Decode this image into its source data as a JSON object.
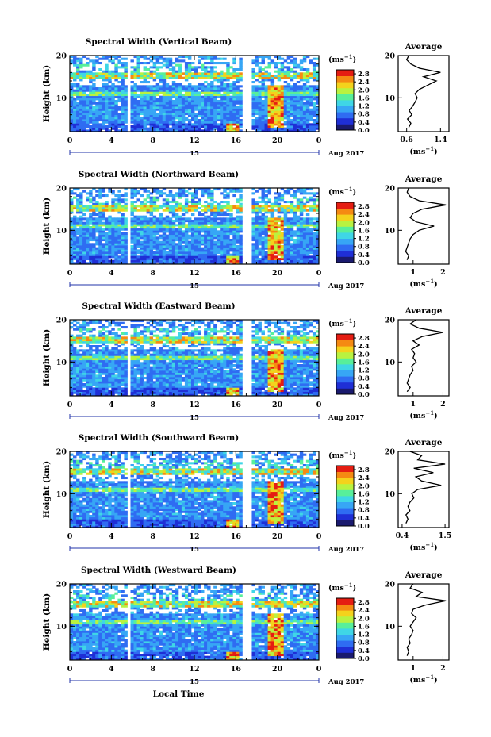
{
  "figure": {
    "xlabel": "Local Time",
    "date_day": "15",
    "date_label": "Aug 2017",
    "ylabel": "Height (km)",
    "avg_title": "Average",
    "avg_unit": "(ms",
    "colorbar_unit": "(ms",
    "unit_exponent": "−1",
    "unit_close": ")"
  },
  "colors": {
    "colormap": [
      "#1a1a6e",
      "#1f2fd6",
      "#2f6cf2",
      "#37a6f5",
      "#3fd6e6",
      "#58ef9a",
      "#b9f240",
      "#f4d21c",
      "#f58a12",
      "#e51d12"
    ],
    "background": "#ffffff"
  },
  "chart_data": [
    {
      "type": "heatmap",
      "beam_id": "vertical",
      "title": "Spectral Width (Vertical Beam)",
      "x_ticks": [
        "0",
        "4",
        "8",
        "12",
        "16",
        "20",
        "0"
      ],
      "x_range": [
        0,
        24
      ],
      "y_ticks": [
        "20",
        "10"
      ],
      "y_range": [
        2,
        20
      ],
      "colorbar_ticks": [
        "2.8",
        "2.4",
        "2.0",
        "1.6",
        "1.2",
        "0.8",
        "0.4",
        "0.0"
      ],
      "colorbar_range": [
        0.0,
        3.0
      ],
      "data_gaps_hours": [
        [
          5.6,
          5.9
        ],
        [
          16.5,
          17.5
        ],
        [
          17.7,
          17.9
        ],
        [
          18.1,
          18.3
        ],
        [
          18.4,
          18.6
        ]
      ],
      "enhanced_feature": {
        "time_range": [
          19,
          20.5
        ],
        "height_range": [
          3,
          13
        ]
      },
      "average_profile": {
        "x_ticks": [
          "0.6",
          "1.4"
        ],
        "x_range": [
          0.4,
          1.6
        ],
        "y_ticks": [
          "20",
          "10"
        ],
        "height": [
          3,
          4,
          5,
          6,
          7,
          8,
          9,
          10,
          11,
          12,
          13,
          14,
          15,
          16,
          17,
          18,
          19,
          20
        ],
        "value": [
          0.65,
          0.7,
          0.62,
          0.72,
          0.66,
          0.74,
          0.8,
          0.85,
          0.8,
          0.9,
          1.1,
          1.3,
          1.0,
          1.4,
          0.9,
          0.7,
          0.6,
          0.65
        ]
      }
    },
    {
      "type": "heatmap",
      "beam_id": "northward",
      "title": "Spectral Width (Northward Beam)",
      "x_ticks": [
        "0",
        "4",
        "8",
        "12",
        "16",
        "20",
        "0"
      ],
      "x_range": [
        0,
        24
      ],
      "y_ticks": [
        "20",
        "10"
      ],
      "y_range": [
        2,
        20
      ],
      "colorbar_ticks": [
        "2.8",
        "2.4",
        "2.0",
        "1.6",
        "1.2",
        "0.8",
        "0.4",
        "0.0"
      ],
      "colorbar_range": [
        0.0,
        3.0
      ],
      "data_gaps_hours": [
        [
          5.6,
          5.9
        ],
        [
          16.5,
          17.5
        ],
        [
          17.7,
          17.9
        ],
        [
          18.1,
          18.3
        ],
        [
          18.4,
          18.6
        ]
      ],
      "enhanced_feature": {
        "time_range": [
          19,
          20.5
        ],
        "height_range": [
          3,
          13
        ]
      },
      "average_profile": {
        "x_ticks": [
          "1",
          "2"
        ],
        "x_range": [
          0.5,
          2.2
        ],
        "y_ticks": [
          "20",
          "10"
        ],
        "height": [
          3,
          4,
          5,
          6,
          7,
          8,
          9,
          10,
          11,
          12,
          13,
          14,
          15,
          16,
          17,
          18,
          19,
          20
        ],
        "value": [
          0.8,
          0.85,
          0.75,
          0.8,
          0.85,
          0.9,
          1.0,
          1.2,
          1.7,
          1.1,
          0.9,
          1.0,
          1.3,
          2.1,
          1.2,
          0.9,
          0.8,
          0.85
        ]
      }
    },
    {
      "type": "heatmap",
      "beam_id": "eastward",
      "title": "Spectral Width (Eastward Beam)",
      "x_ticks": [
        "0",
        "4",
        "8",
        "12",
        "16",
        "20",
        "0"
      ],
      "x_range": [
        0,
        24
      ],
      "y_ticks": [
        "20",
        "10"
      ],
      "y_range": [
        2,
        20
      ],
      "colorbar_ticks": [
        "2.8",
        "2.4",
        "2.0",
        "1.6",
        "1.2",
        "0.8",
        "0.4",
        "0.0"
      ],
      "colorbar_range": [
        0.0,
        3.0
      ],
      "data_gaps_hours": [
        [
          5.6,
          5.9
        ],
        [
          16.5,
          17.5
        ],
        [
          17.7,
          17.9
        ],
        [
          18.1,
          18.3
        ],
        [
          18.4,
          18.6
        ]
      ],
      "enhanced_feature": {
        "time_range": [
          19,
          20.5
        ],
        "height_range": [
          3,
          13
        ]
      },
      "average_profile": {
        "x_ticks": [
          "1",
          "2"
        ],
        "x_range": [
          0.5,
          2.2
        ],
        "y_ticks": [
          "20",
          "10"
        ],
        "height": [
          3,
          4,
          5,
          6,
          7,
          8,
          9,
          10,
          11,
          12,
          13,
          14,
          15,
          16,
          17,
          18,
          19,
          20
        ],
        "value": [
          0.8,
          0.9,
          0.8,
          0.85,
          0.9,
          1.0,
          0.95,
          1.1,
          1.0,
          1.05,
          0.95,
          1.2,
          1.0,
          1.3,
          2.0,
          1.2,
          0.9,
          1.1
        ]
      }
    },
    {
      "type": "heatmap",
      "beam_id": "southward",
      "title": "Spectral Width (Southward Beam)",
      "x_ticks": [
        "0",
        "4",
        "8",
        "12",
        "16",
        "20",
        "0"
      ],
      "x_range": [
        0,
        24
      ],
      "y_ticks": [
        "20",
        "10"
      ],
      "y_range": [
        2,
        20
      ],
      "colorbar_ticks": [
        "2.8",
        "2.4",
        "2.0",
        "1.6",
        "1.2",
        "0.8",
        "0.4",
        "0.0"
      ],
      "colorbar_range": [
        0.0,
        3.0
      ],
      "data_gaps_hours": [
        [
          5.6,
          5.9
        ],
        [
          16.5,
          17.5
        ],
        [
          17.7,
          17.9
        ],
        [
          18.1,
          18.3
        ],
        [
          18.4,
          18.6
        ]
      ],
      "enhanced_feature": {
        "time_range": [
          19,
          20.5
        ],
        "height_range": [
          3,
          13
        ]
      },
      "average_profile": {
        "x_ticks": [
          "0.4",
          "1.5"
        ],
        "x_range": [
          0.3,
          1.6
        ],
        "y_ticks": [
          "20",
          "10"
        ],
        "height": [
          3,
          4,
          5,
          6,
          7,
          8,
          9,
          10,
          11,
          12,
          13,
          14,
          15,
          16,
          17,
          18,
          19,
          20
        ],
        "value": [
          0.5,
          0.55,
          0.5,
          0.6,
          0.55,
          0.6,
          0.7,
          0.65,
          0.8,
          1.4,
          0.9,
          0.75,
          1.2,
          0.7,
          1.5,
          0.8,
          0.9,
          0.6
        ]
      }
    },
    {
      "type": "heatmap",
      "beam_id": "westward",
      "title": "Spectral Width (Westward Beam)",
      "x_ticks": [
        "0",
        "4",
        "8",
        "12",
        "16",
        "20",
        "0"
      ],
      "x_range": [
        0,
        24
      ],
      "y_ticks": [
        "20",
        "10"
      ],
      "y_range": [
        2,
        20
      ],
      "colorbar_ticks": [
        "2.8",
        "2.4",
        "2.0",
        "1.6",
        "1.2",
        "0.8",
        "0.4",
        "0.0"
      ],
      "colorbar_range": [
        0.0,
        3.0
      ],
      "data_gaps_hours": [
        [
          5.6,
          5.9
        ],
        [
          16.5,
          17.5
        ],
        [
          17.7,
          17.9
        ],
        [
          18.1,
          18.3
        ],
        [
          18.4,
          18.6
        ]
      ],
      "enhanced_feature": {
        "time_range": [
          19,
          20.5
        ],
        "height_range": [
          3,
          13
        ]
      },
      "average_profile": {
        "x_ticks": [
          "1",
          "2"
        ],
        "x_range": [
          0.5,
          2.2
        ],
        "y_ticks": [
          "20",
          "10"
        ],
        "height": [
          3,
          4,
          5,
          6,
          7,
          8,
          9,
          10,
          11,
          12,
          13,
          14,
          15,
          16,
          17,
          18,
          19,
          20
        ],
        "value": [
          0.8,
          0.85,
          0.8,
          0.9,
          0.85,
          0.95,
          1.0,
          0.9,
          1.0,
          1.1,
          0.95,
          1.0,
          1.4,
          2.1,
          1.1,
          1.3,
          0.9,
          1.0
        ]
      }
    }
  ]
}
